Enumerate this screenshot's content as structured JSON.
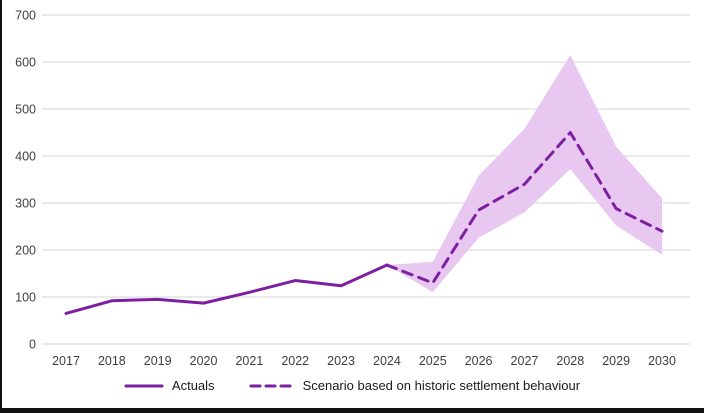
{
  "chart_data": {
    "type": "line",
    "title": "",
    "xlabel": "",
    "ylabel": "",
    "x": [
      2017,
      2018,
      2019,
      2020,
      2021,
      2022,
      2023,
      2024,
      2025,
      2026,
      2027,
      2028,
      2029,
      2030
    ],
    "series": [
      {
        "name": "Actuals",
        "style": "solid",
        "values": [
          65,
          92,
          95,
          87,
          110,
          135,
          124,
          168,
          null,
          null,
          null,
          null,
          null,
          null
        ]
      },
      {
        "name": "Scenario based on historic settlement behaviour",
        "style": "dashed",
        "values": [
          null,
          null,
          null,
          null,
          null,
          null,
          null,
          168,
          130,
          285,
          340,
          450,
          288,
          240
        ]
      }
    ],
    "band": {
      "name": "scenario-uncertainty-range",
      "x": [
        2024,
        2025,
        2026,
        2027,
        2028,
        2029,
        2030
      ],
      "upper": [
        168,
        175,
        358,
        458,
        615,
        420,
        310
      ],
      "lower": [
        168,
        110,
        226,
        280,
        372,
        252,
        190
      ]
    },
    "ylim": [
      0,
      700
    ],
    "ytick_step": 100,
    "yticks": [
      0,
      100,
      200,
      300,
      400,
      500,
      600,
      700
    ],
    "grid": "horizontal",
    "legend_position": "bottom",
    "colors": {
      "line": "#7e1fa2",
      "band": "#e8c8f0",
      "grid": "#d6d6d6",
      "tick_text": "#3f3f3f"
    }
  },
  "legend": {
    "actuals_label": "Actuals",
    "scenario_label": "Scenario based on historic settlement behaviour"
  }
}
